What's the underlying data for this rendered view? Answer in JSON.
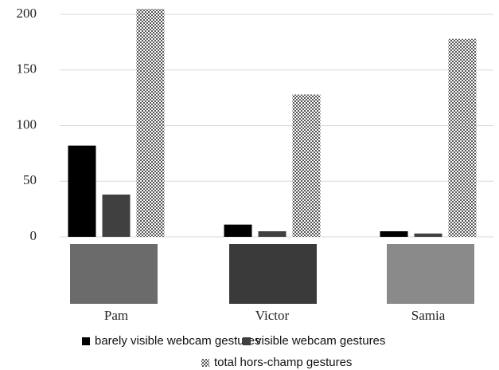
{
  "chart_data": {
    "type": "bar",
    "categories": [
      "Pam",
      "Victor",
      "Samia"
    ],
    "series": [
      {
        "name": "barely visible webcam gestures",
        "color": "#000000",
        "values": [
          82,
          11,
          5
        ]
      },
      {
        "name": "visible webcam gestures",
        "color": "#404040",
        "values": [
          38,
          5,
          3
        ]
      },
      {
        "name": "total hors-champ gestures",
        "color": "#555555",
        "fill_pattern": "checker",
        "values": [
          205,
          128,
          178
        ]
      }
    ],
    "ylim": [
      0,
      200
    ],
    "yticks": [
      0,
      50,
      100,
      150,
      200
    ],
    "grid": true,
    "legend": "bottom"
  }
}
